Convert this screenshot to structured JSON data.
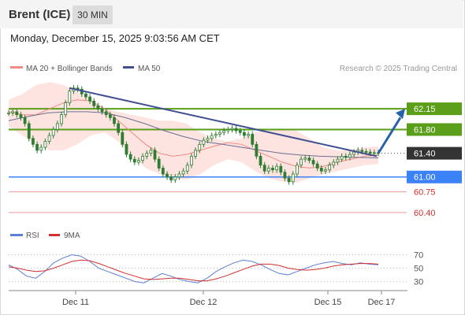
{
  "header": {
    "instrument": "Brent (ICE)",
    "timeframe": "30 MIN"
  },
  "datetime": "Monday, December 15, 2025 9:03:56 AM CET",
  "legend": {
    "ma20_label": "MA 20 + Bollinger Bands",
    "ma50_label": "MA 50",
    "copyright": "Research © 2025 Trading Central",
    "rsi_label": "RSI",
    "rsi_ma_label": "9MA"
  },
  "colors": {
    "ma20": "#f28b82",
    "ma50": "#3f4f8f",
    "bollinger_fill": "#fde4e1",
    "resistance": "#5a9e1a",
    "support_blue": "#3b82f6",
    "support_red": "#ef9a9a",
    "current_price_bg": "#333333",
    "candle": "#2e7d32",
    "trendline": "#3f4f8f",
    "arrow": "#2563a8",
    "rsi": "#5b7fd6",
    "rsi_ma": "#d32f2f"
  },
  "chart_data": [
    {
      "type": "candlestick",
      "ylim": [
        60.2,
        62.55
      ],
      "x_ticks": [
        "Dec 11",
        "Dec 12",
        "Dec 15",
        "Dec 17"
      ],
      "price_levels": [
        {
          "value": 62.15,
          "label": "62.15",
          "kind": "resistance"
        },
        {
          "value": 61.8,
          "label": "61.80",
          "kind": "resistance"
        },
        {
          "value": 61.4,
          "label": "61.40",
          "kind": "current"
        },
        {
          "value": 61.0,
          "label": "61.00",
          "kind": "support"
        },
        {
          "value": 60.75,
          "label": "60.75",
          "kind": "support"
        },
        {
          "value": 60.4,
          "label": "60.40",
          "kind": "support"
        }
      ],
      "closes": [
        62.08,
        62.1,
        62.05,
        62.0,
        61.9,
        61.65,
        61.55,
        61.45,
        61.5,
        61.6,
        61.7,
        61.8,
        61.9,
        62.05,
        62.25,
        62.45,
        62.5,
        62.48,
        62.4,
        62.35,
        62.28,
        62.2,
        62.15,
        62.1,
        62.05,
        62.0,
        61.9,
        61.75,
        61.55,
        61.38,
        61.3,
        61.25,
        61.28,
        61.35,
        61.4,
        61.45,
        61.3,
        61.15,
        61.05,
        61.0,
        60.95,
        61.0,
        61.05,
        61.1,
        61.2,
        61.35,
        61.45,
        61.55,
        61.62,
        61.65,
        61.7,
        61.72,
        61.75,
        61.78,
        61.8,
        61.82,
        61.78,
        61.75,
        61.7,
        61.72,
        61.55,
        61.35,
        61.2,
        61.1,
        61.15,
        61.12,
        61.18,
        61.08,
        60.98,
        60.92,
        61.05,
        61.2,
        61.3,
        61.32,
        61.28,
        61.22,
        61.15,
        61.1,
        61.12,
        61.2,
        61.25,
        61.3,
        61.35,
        61.33,
        61.38,
        61.42,
        61.45,
        61.43,
        61.42,
        61.4,
        61.41,
        61.4
      ],
      "bollinger_upper": [
        62.3,
        62.4,
        62.55,
        62.6,
        62.55,
        62.45,
        62.3,
        62.15,
        62.1,
        62.05,
        62.0,
        61.95,
        61.95,
        61.9,
        61.75,
        61.65,
        61.6,
        61.65,
        61.75,
        61.8,
        61.82,
        61.78,
        61.65,
        61.5,
        61.45,
        61.45,
        61.5,
        61.52
      ],
      "bollinger_lower": [
        61.85,
        61.7,
        61.55,
        61.45,
        61.45,
        61.55,
        61.7,
        61.75,
        61.6,
        61.35,
        61.15,
        61.05,
        60.98,
        60.95,
        61.05,
        61.2,
        61.3,
        61.25,
        61.1,
        60.98,
        60.92,
        60.9,
        60.98,
        61.05,
        61.1,
        61.15,
        61.2,
        61.22
      ],
      "ma20": [
        62.1,
        62.05,
        62.05,
        62.15,
        62.25,
        62.3,
        62.28,
        62.15,
        61.95,
        61.75,
        61.55,
        61.4,
        61.35,
        61.38,
        61.45,
        61.52,
        61.58,
        61.55,
        61.45,
        61.35,
        61.25,
        61.18,
        61.15,
        61.18,
        61.25,
        61.3,
        61.35,
        61.37
      ],
      "ma50": [
        61.95,
        62.02,
        62.08,
        62.1,
        62.1,
        62.08,
        62.0,
        61.9,
        61.78,
        61.68,
        61.6,
        61.55,
        61.5,
        61.45,
        61.4,
        61.37,
        61.35,
        61.34,
        61.33,
        61.32
      ]
    },
    {
      "type": "line",
      "ylabel": "RSI",
      "ylim": [
        20,
        80
      ],
      "y_ticks": [
        "70",
        "50",
        "30"
      ],
      "series": [
        {
          "name": "RSI",
          "values": [
            55,
            48,
            38,
            35,
            45,
            58,
            65,
            70,
            68,
            60,
            50,
            45,
            40,
            35,
            30,
            28,
            35,
            42,
            38,
            33,
            30,
            28,
            35,
            45,
            52,
            58,
            62,
            60,
            55,
            48,
            42,
            40,
            45,
            50,
            55,
            58,
            60,
            57,
            55,
            58,
            56,
            55
          ]
        },
        {
          "name": "9MA",
          "values": [
            52,
            50,
            47,
            45,
            46,
            50,
            55,
            60,
            62,
            61,
            57,
            52,
            47,
            42,
            38,
            34,
            33,
            34,
            35,
            35,
            33,
            31,
            31,
            34,
            38,
            43,
            48,
            53,
            56,
            56,
            54,
            50,
            48,
            47,
            48,
            50,
            53,
            55,
            56,
            57,
            57,
            56
          ]
        }
      ]
    }
  ]
}
